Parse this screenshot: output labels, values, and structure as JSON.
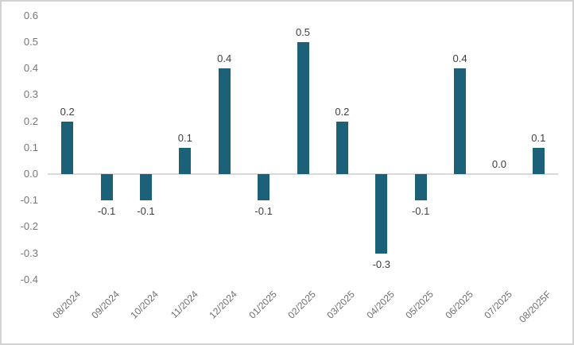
{
  "chart_data": {
    "type": "bar",
    "title": "",
    "xlabel": "",
    "ylabel": "",
    "categories": [
      "08/2024",
      "09/2024",
      "10/2024",
      "11/2024",
      "12/2024",
      "01/2025",
      "02/2025",
      "03/2025",
      "04/2025",
      "05/2025",
      "06/2025",
      "07/2025",
      "08/2025F"
    ],
    "values": [
      0.2,
      -0.1,
      -0.1,
      0.1,
      0.4,
      -0.1,
      0.5,
      0.2,
      -0.3,
      -0.1,
      0.4,
      0.0,
      0.1
    ],
    "data_labels": [
      "0.2",
      "-0.1",
      "-0.1",
      "0.1",
      "0.4",
      "-0.1",
      "0.5",
      "0.2",
      "-0.3",
      "-0.1",
      "0.4",
      "0.0",
      "0.1"
    ],
    "ytick_labels": [
      "0.6",
      "0.5",
      "0.4",
      "0.3",
      "0.2",
      "0.1",
      "0.0",
      "-0.1",
      "-0.2",
      "-0.3",
      "-0.4"
    ],
    "ytick_values": [
      0.6,
      0.5,
      0.4,
      0.3,
      0.2,
      0.1,
      0.0,
      -0.1,
      -0.2,
      -0.3,
      -0.4
    ],
    "ylim": [
      -0.4,
      0.6
    ],
    "grid": false,
    "legend_position": "none",
    "colors": {
      "bar": "#1d6179",
      "zero_line": "#d9d9d9",
      "ytick_text": "#767676",
      "xtick_text": "#6e6e6e",
      "data_label_text": "#404040",
      "frame_border": "#d2d2d2",
      "background": "#ffffff"
    }
  }
}
